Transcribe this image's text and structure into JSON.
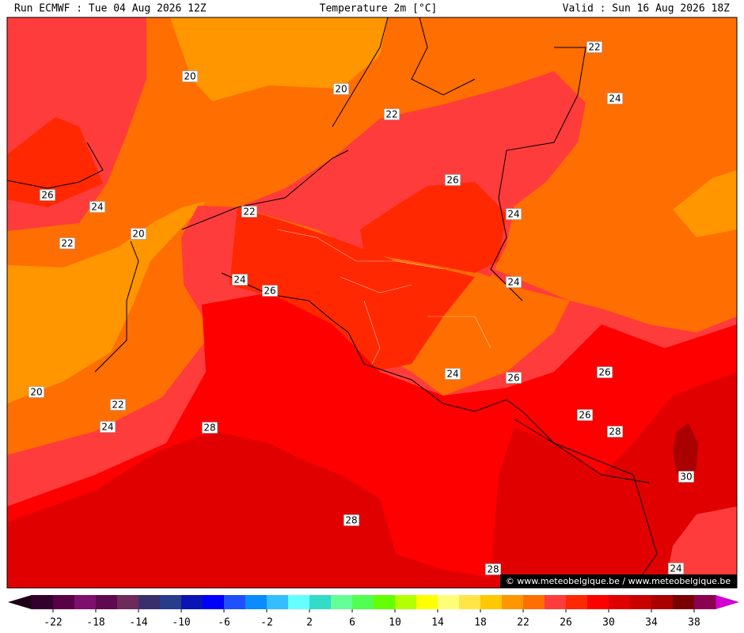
{
  "header": {
    "run": "Run ECMWF : Tue 04 Aug 2026 12Z",
    "title": "Temperature 2m [°C]",
    "valid": "Valid : Sun 16 Aug 2026 18Z"
  },
  "contour_labels": [
    20,
    20,
    22,
    22,
    24,
    26,
    24,
    22,
    20,
    22,
    26,
    24,
    24,
    26,
    24,
    24,
    26,
    26,
    20,
    22,
    26,
    24,
    28,
    28,
    30,
    28,
    28,
    24
  ],
  "colorbar": {
    "bounds": [
      -24,
      40
    ],
    "ticks": [
      -22,
      -18,
      -14,
      -10,
      -6,
      -2,
      2,
      6,
      10,
      14,
      18,
      22,
      26,
      30,
      34,
      38
    ],
    "colors": [
      "#32002d",
      "#5a0046",
      "#7d106e",
      "#5f0a4f",
      "#6e2a5a",
      "#3a2f6e",
      "#283c8c",
      "#0a14b4",
      "#0000ff",
      "#1e50ff",
      "#0a8cff",
      "#32beff",
      "#64ffff",
      "#32dcc8",
      "#64ff96",
      "#50ff50",
      "#64ff00",
      "#b4ff00",
      "#ffff00",
      "#ffff78",
      "#ffe646",
      "#ffc800",
      "#ff9600",
      "#ff6e00",
      "#ff3c3c",
      "#ff2800",
      "#ff0000",
      "#e10000",
      "#c80000",
      "#aa0000",
      "#780000",
      "#8c0050"
    ],
    "under_color": "#1e0019",
    "over_color": "#d200d2"
  },
  "credit": "© www.meteobelgique.be / www.meteobelgique.be"
}
